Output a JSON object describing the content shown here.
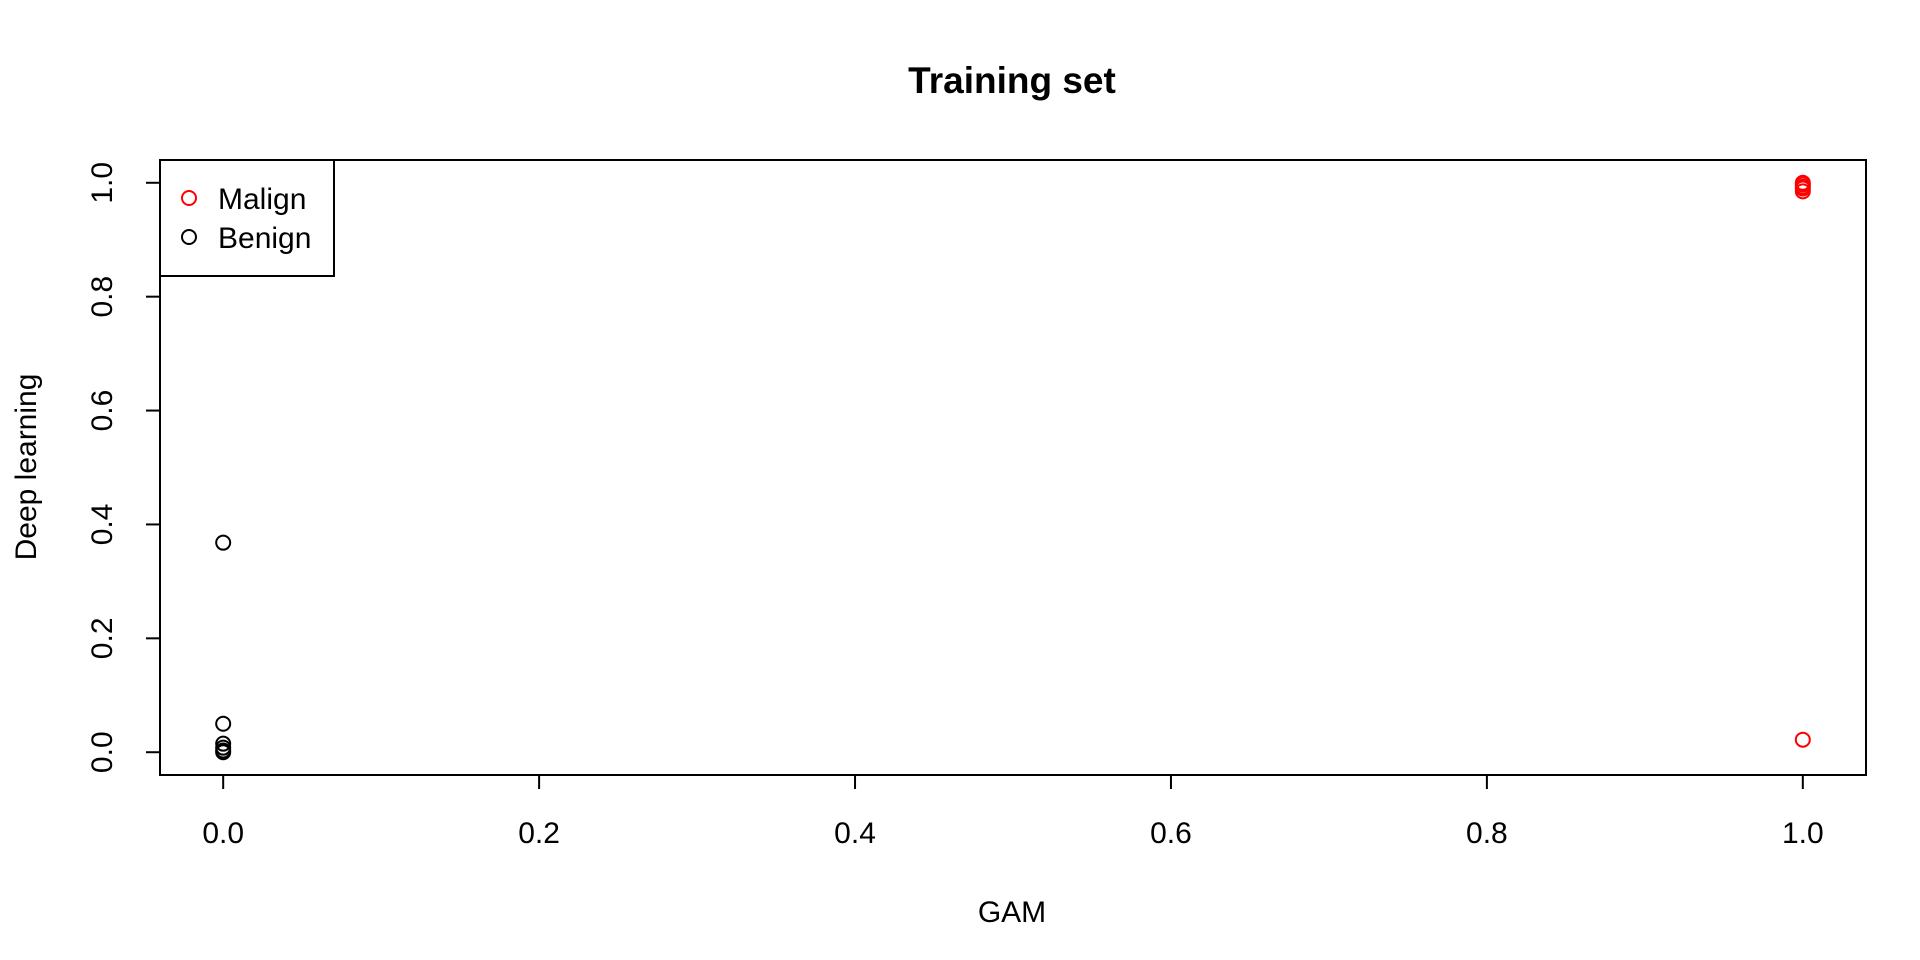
{
  "chart_data": {
    "type": "scatter",
    "title": "Training set",
    "xlabel": "GAM",
    "ylabel": "Deep learning",
    "xlim": [
      -0.04,
      1.04
    ],
    "ylim": [
      -0.04,
      1.04
    ],
    "x_ticks": [
      0.0,
      0.2,
      0.4,
      0.6,
      0.8,
      1.0
    ],
    "x_tick_labels": [
      "0.0",
      "0.2",
      "0.4",
      "0.6",
      "0.8",
      "1.0"
    ],
    "y_ticks": [
      0.0,
      0.2,
      0.4,
      0.6,
      0.8,
      1.0
    ],
    "y_tick_labels": [
      "0.0",
      "0.2",
      "0.4",
      "0.6",
      "0.8",
      "1.0"
    ],
    "grid": false,
    "legend": "top-left",
    "series": [
      {
        "name": "Malign",
        "color": "#ff0000",
        "marker": "open-circle",
        "points": [
          [
            1.0,
            1.0
          ],
          [
            1.0,
            0.997
          ],
          [
            1.0,
            0.993
          ],
          [
            1.0,
            0.99
          ],
          [
            1.0,
            0.985
          ],
          [
            1.0,
            0.022
          ]
        ]
      },
      {
        "name": "Benign",
        "color": "#000000",
        "marker": "open-circle",
        "points": [
          [
            0.0,
            0.368
          ],
          [
            0.0,
            0.05
          ],
          [
            0.0,
            0.015
          ],
          [
            0.0,
            0.008
          ],
          [
            0.0,
            0.003
          ],
          [
            0.0,
            0.0
          ]
        ]
      }
    ]
  }
}
